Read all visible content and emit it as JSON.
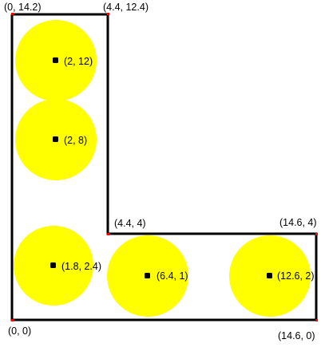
{
  "colors": {
    "circle_fill": "#ffff00",
    "outline": "#000000",
    "corner_marker": "#ff0000",
    "center_dot": "#000000"
  },
  "diagram": {
    "outline_vertices": [
      {
        "id": "origin",
        "label": "(0, 0)"
      },
      {
        "id": "top-left",
        "label": "(0, 14.2)"
      },
      {
        "id": "top-right",
        "label": "(4.4, 12.4)"
      },
      {
        "id": "inner-corner",
        "label": "(4.4, 4)"
      },
      {
        "id": "right-top",
        "label": "(14.6, 4)"
      },
      {
        "id": "right-bottom",
        "label": "(14.6, 0)"
      }
    ],
    "circles": [
      {
        "id": "circle-1",
        "center_label": "(2, 12)"
      },
      {
        "id": "circle-2",
        "center_label": "(2, 8)"
      },
      {
        "id": "circle-3",
        "center_label": "(1.8, 2.4)"
      },
      {
        "id": "circle-4",
        "center_label": "(6.4, 1)"
      },
      {
        "id": "circle-5",
        "center_label": "(12.6, 2)"
      }
    ]
  }
}
